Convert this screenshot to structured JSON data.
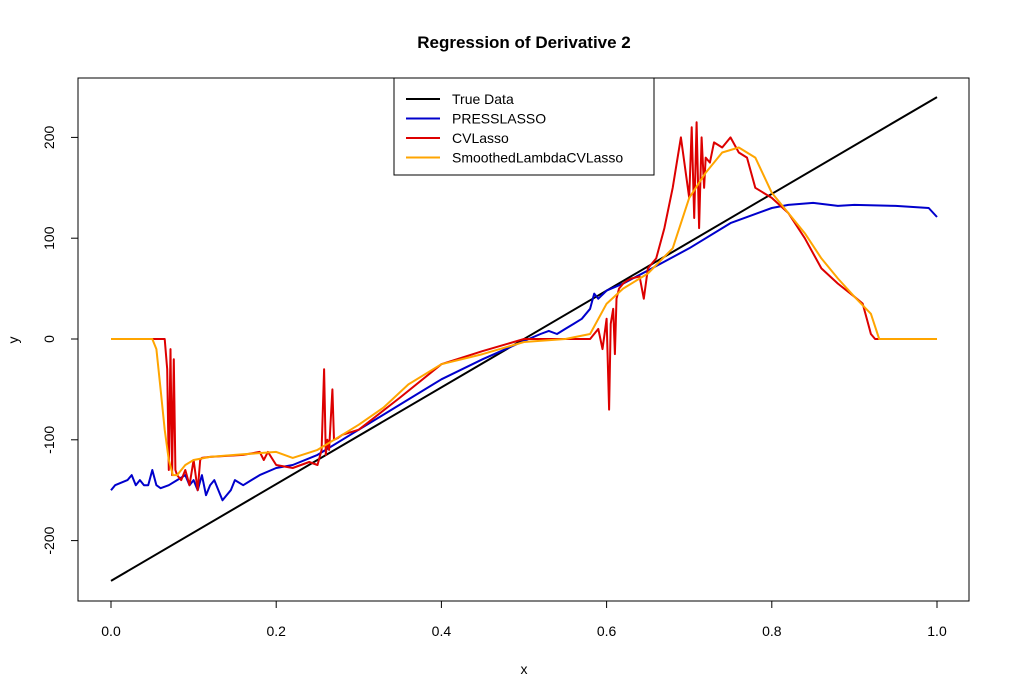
{
  "chart_data": {
    "type": "line",
    "title": "Regression of Derivative  2",
    "xlabel": "x",
    "ylabel": "y",
    "xlim": [
      0.0,
      1.0
    ],
    "ylim": [
      -250,
      250
    ],
    "x_ticks": [
      "0.0",
      "0.2",
      "0.4",
      "0.6",
      "0.8",
      "1.0"
    ],
    "y_ticks": [
      "-200",
      "-100",
      "0",
      "100",
      "200"
    ],
    "grid": false,
    "legend_position": "top-center",
    "series": [
      {
        "name": "True Data",
        "color": "#000000",
        "x": [
          0.0,
          1.0
        ],
        "y": [
          -240,
          240
        ]
      },
      {
        "name": "PRESSLASSO",
        "color": "#0000cc",
        "x": [
          0.0,
          0.005,
          0.02,
          0.025,
          0.03,
          0.035,
          0.04,
          0.045,
          0.05,
          0.055,
          0.06,
          0.07,
          0.08,
          0.09,
          0.095,
          0.1,
          0.105,
          0.11,
          0.115,
          0.12,
          0.125,
          0.13,
          0.135,
          0.14,
          0.145,
          0.15,
          0.16,
          0.17,
          0.18,
          0.2,
          0.22,
          0.25,
          0.3,
          0.35,
          0.4,
          0.45,
          0.5,
          0.52,
          0.53,
          0.54,
          0.55,
          0.56,
          0.57,
          0.58,
          0.585,
          0.59,
          0.6,
          0.62,
          0.65,
          0.7,
          0.75,
          0.8,
          0.82,
          0.85,
          0.88,
          0.9,
          0.95,
          0.99,
          1.0
        ],
        "y": [
          -150,
          -145,
          -140,
          -135,
          -145,
          -140,
          -145,
          -145,
          -130,
          -145,
          -148,
          -145,
          -140,
          -135,
          -145,
          -140,
          -150,
          -135,
          -155,
          -145,
          -140,
          -150,
          -160,
          -155,
          -150,
          -140,
          -145,
          -140,
          -135,
          -128,
          -125,
          -115,
          -90,
          -65,
          -40,
          -20,
          -2,
          5,
          8,
          5,
          10,
          15,
          20,
          30,
          45,
          40,
          48,
          55,
          68,
          90,
          115,
          130,
          133,
          135,
          132,
          133,
          132,
          130,
          121
        ]
      },
      {
        "name": "CVLasso",
        "color": "#dd0000",
        "x": [
          0.0,
          0.05,
          0.055,
          0.065,
          0.068,
          0.07,
          0.072,
          0.074,
          0.076,
          0.078,
          0.08,
          0.085,
          0.09,
          0.095,
          0.1,
          0.105,
          0.108,
          0.11,
          0.12,
          0.14,
          0.16,
          0.18,
          0.185,
          0.19,
          0.2,
          0.22,
          0.24,
          0.25,
          0.255,
          0.258,
          0.26,
          0.262,
          0.264,
          0.268,
          0.27,
          0.275,
          0.28,
          0.3,
          0.35,
          0.4,
          0.45,
          0.5,
          0.55,
          0.58,
          0.59,
          0.595,
          0.6,
          0.603,
          0.605,
          0.608,
          0.61,
          0.612,
          0.615,
          0.62,
          0.625,
          0.63,
          0.64,
          0.645,
          0.65,
          0.66,
          0.67,
          0.68,
          0.69,
          0.7,
          0.703,
          0.706,
          0.709,
          0.712,
          0.715,
          0.718,
          0.72,
          0.725,
          0.73,
          0.74,
          0.75,
          0.76,
          0.77,
          0.78,
          0.8,
          0.82,
          0.84,
          0.86,
          0.88,
          0.9,
          0.91,
          0.915,
          0.92,
          0.925,
          0.93,
          0.95,
          1.0
        ],
        "y": [
          0,
          0,
          0,
          0,
          -30,
          -130,
          -10,
          -135,
          -20,
          -130,
          -135,
          -140,
          -130,
          -145,
          -120,
          -150,
          -120,
          -118,
          -117,
          -116,
          -115,
          -112,
          -120,
          -112,
          -125,
          -128,
          -122,
          -125,
          -110,
          -30,
          -115,
          -100,
          -110,
          -50,
          -100,
          -98,
          -95,
          -90,
          -58,
          -25,
          -12,
          0,
          0,
          0,
          10,
          -10,
          20,
          -70,
          15,
          30,
          -15,
          40,
          50,
          55,
          58,
          60,
          62,
          40,
          70,
          80,
          110,
          150,
          200,
          140,
          210,
          120,
          215,
          110,
          200,
          150,
          180,
          175,
          195,
          190,
          200,
          185,
          180,
          150,
          140,
          125,
          100,
          70,
          55,
          42,
          35,
          20,
          5,
          0,
          0,
          0,
          0
        ]
      },
      {
        "name": "SmoothedLambdaCVLasso",
        "color": "#ffa500",
        "x": [
          0.0,
          0.05,
          0.055,
          0.06,
          0.065,
          0.07,
          0.075,
          0.08,
          0.09,
          0.1,
          0.12,
          0.15,
          0.2,
          0.22,
          0.25,
          0.28,
          0.3,
          0.33,
          0.36,
          0.4,
          0.45,
          0.5,
          0.55,
          0.58,
          0.6,
          0.62,
          0.65,
          0.68,
          0.7,
          0.72,
          0.74,
          0.76,
          0.78,
          0.8,
          0.82,
          0.84,
          0.86,
          0.88,
          0.9,
          0.92,
          0.93,
          0.95,
          1.0
        ],
        "y": [
          0,
          0,
          -10,
          -50,
          -90,
          -120,
          -135,
          -135,
          -125,
          -120,
          -117,
          -115,
          -112,
          -118,
          -110,
          -95,
          -85,
          -68,
          -45,
          -25,
          -15,
          -3,
          0,
          5,
          35,
          50,
          65,
          90,
          140,
          165,
          185,
          190,
          180,
          145,
          125,
          105,
          80,
          60,
          42,
          25,
          0,
          0,
          0
        ]
      }
    ]
  }
}
